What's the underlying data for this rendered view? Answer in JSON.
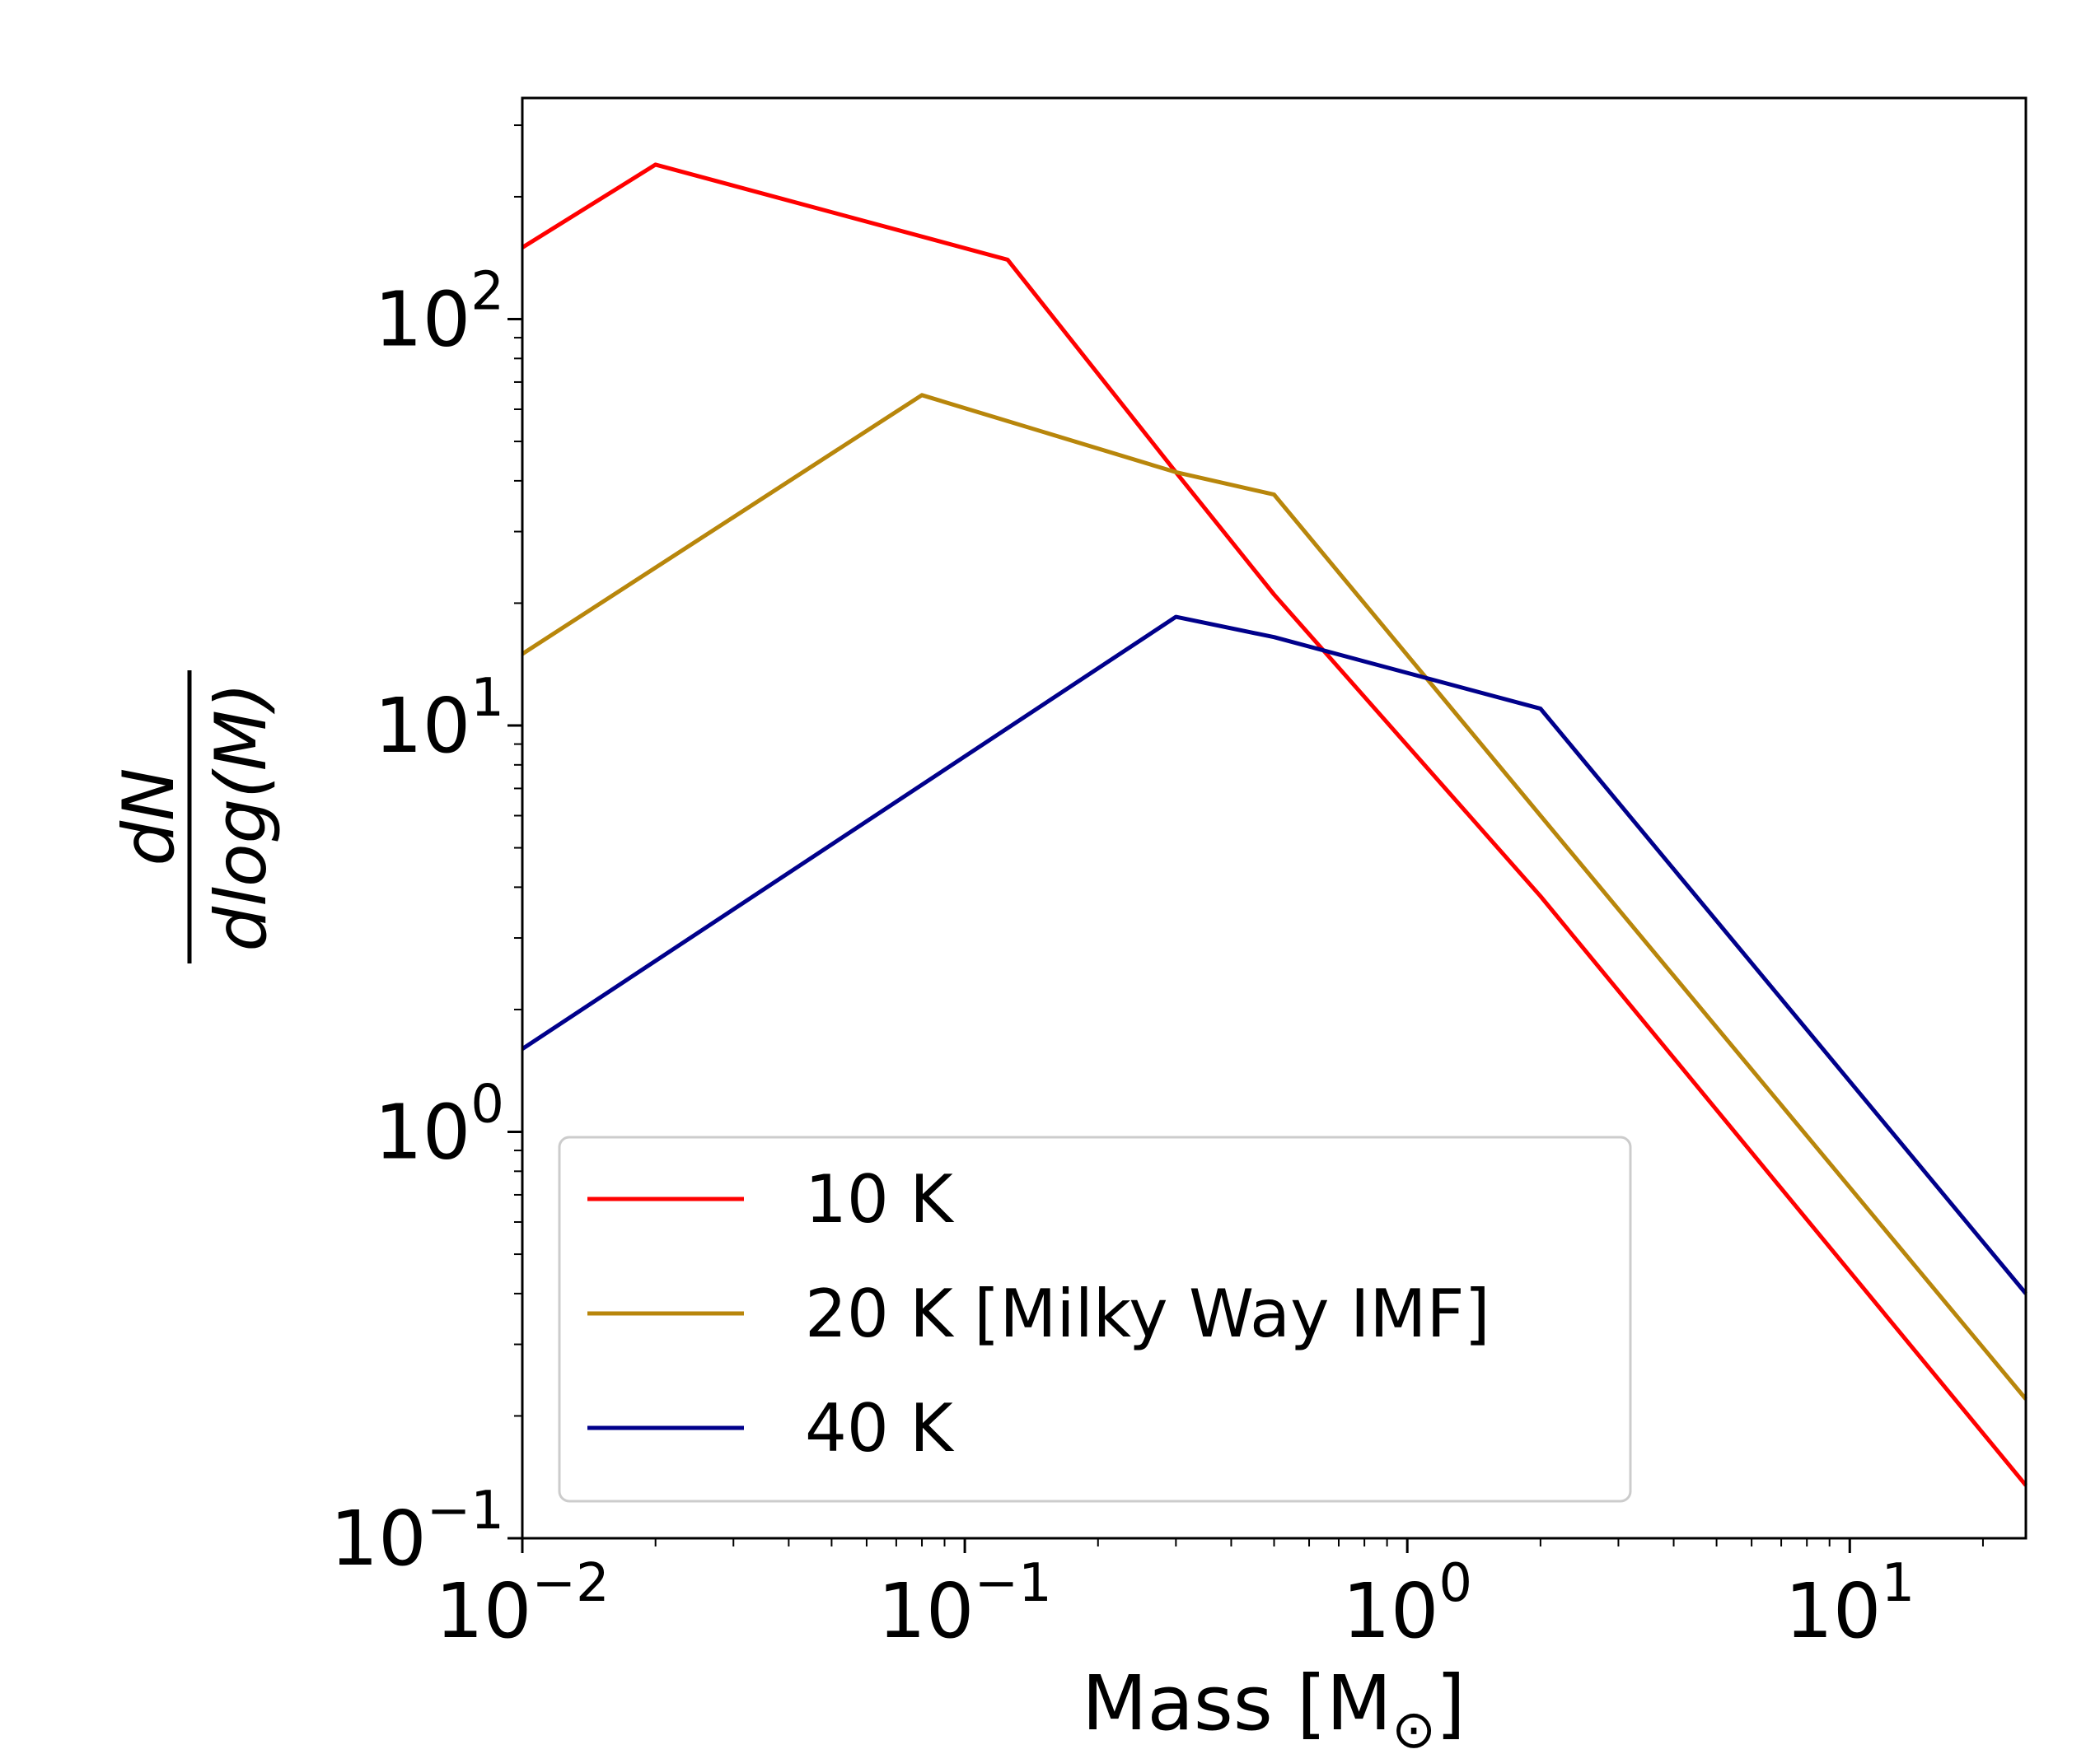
{
  "chart_data": {
    "type": "line",
    "title": "",
    "xscale": "log",
    "yscale": "log",
    "xlim": [
      0.01,
      25
    ],
    "ylim": [
      0.1,
      350
    ],
    "xlabel": {
      "text": "Mass [M",
      "subscript": "⊙",
      "close": "]"
    },
    "ylabel": {
      "numerator": "dN",
      "denominator": "dlog(M)"
    },
    "x_ticks": [
      {
        "value": 0.01,
        "base": "10",
        "exp": "−2"
      },
      {
        "value": 0.1,
        "base": "10",
        "exp": "−1"
      },
      {
        "value": 1,
        "base": "10",
        "exp": "0"
      },
      {
        "value": 10,
        "base": "10",
        "exp": "1"
      }
    ],
    "y_ticks": [
      {
        "value": 0.1,
        "base": "10",
        "exp": "−1"
      },
      {
        "value": 1,
        "base": "10",
        "exp": "0"
      },
      {
        "value": 10,
        "base": "10",
        "exp": "1"
      },
      {
        "value": 100,
        "base": "10",
        "exp": "2"
      }
    ],
    "series": [
      {
        "name": "10 K",
        "color": "#ff0000",
        "points": [
          [
            0.01,
            150
          ],
          [
            0.02,
            240
          ],
          [
            0.125,
            140
          ],
          [
            0.3,
            42
          ],
          [
            0.5,
            21
          ],
          [
            2.0,
            3.8
          ],
          [
            25,
            0.135
          ]
        ]
      },
      {
        "name": "20 K [Milky Way IMF]",
        "color": "#b8860b",
        "points": [
          [
            0.01,
            15
          ],
          [
            0.08,
            65
          ],
          [
            0.3,
            42
          ],
          [
            0.5,
            37
          ],
          [
            2.0,
            6.0
          ],
          [
            25,
            0.22
          ]
        ]
      },
      {
        "name": "40 K",
        "color": "#00008b",
        "points": [
          [
            0.01,
            1.6
          ],
          [
            0.3,
            18.5
          ],
          [
            0.5,
            16.5
          ],
          [
            2.0,
            11
          ],
          [
            25,
            0.4
          ]
        ]
      }
    ],
    "legend": {
      "position": "lower-left",
      "entries": [
        "10 K",
        "20 K [Milky Way IMF]",
        "40 K"
      ]
    },
    "grid": false
  }
}
